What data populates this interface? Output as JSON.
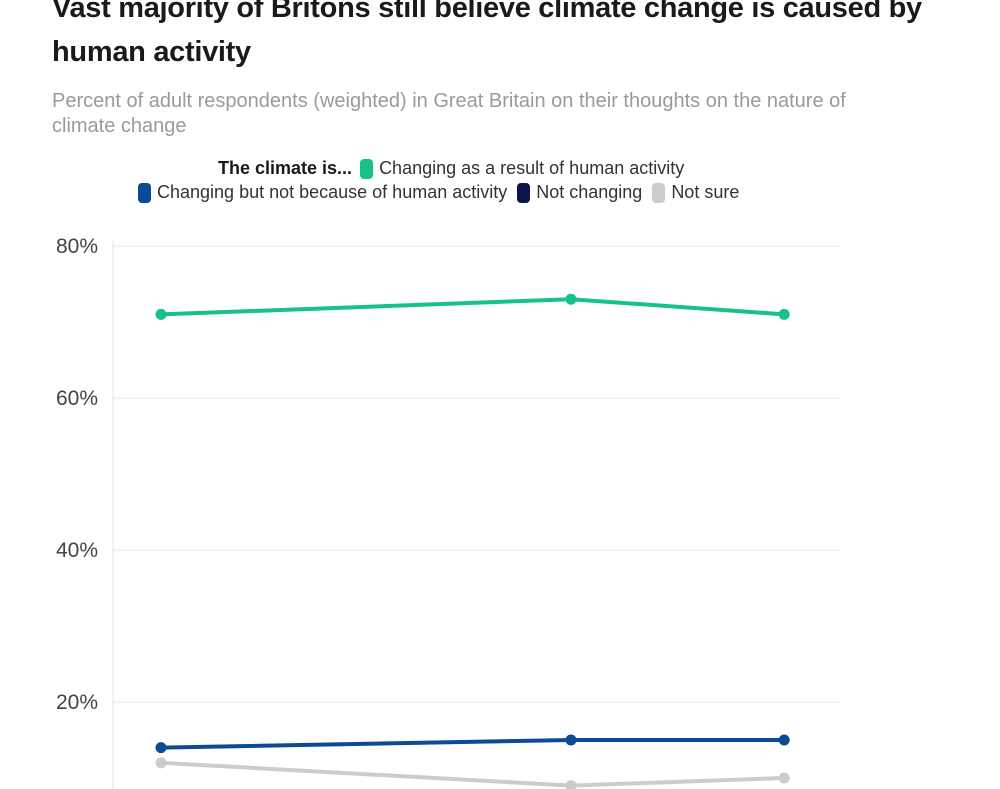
{
  "chart_data": {
    "type": "line",
    "title": "Vast majority of Britons still believe climate change is caused by human activity",
    "subtitle": "Percent of adult respondents (weighted) in Great Britain on their thoughts on the nature of climate change",
    "legend_heading": "The climate is...",
    "xlabel": "",
    "ylabel": "",
    "ylim": [
      0,
      80
    ],
    "y_ticks": [
      20,
      40,
      60,
      80
    ],
    "y_tick_labels": [
      "20%",
      "40%",
      "60%",
      "80%"
    ],
    "grid": true,
    "x": [
      0,
      1,
      1.52
    ],
    "series": [
      {
        "name": "Changing as a result of human activity",
        "color": "#17c28a",
        "values": [
          71,
          73,
          71
        ]
      },
      {
        "name": "Changing but not because of human activity",
        "color": "#0b4a94",
        "values": [
          14,
          15,
          15
        ]
      },
      {
        "name": "Not changing",
        "color": "#0c1549",
        "values": [
          null,
          null,
          null
        ]
      },
      {
        "name": "Not sure",
        "color": "#cccccc",
        "values": [
          12,
          9,
          10
        ]
      }
    ]
  }
}
